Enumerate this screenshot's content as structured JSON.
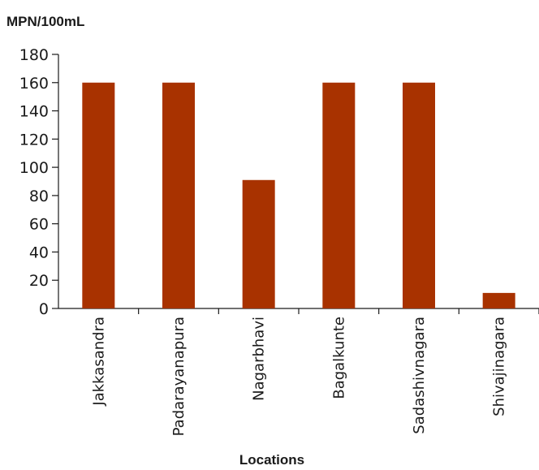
{
  "chart_data": {
    "type": "bar",
    "title": "",
    "ylabel": "MPN/100mL",
    "xlabel": "Locations",
    "categories": [
      "Jakkasandra",
      "Padarayanapura",
      "Nagarbhavi",
      "Bagalkunte",
      "Sadashivnagara",
      "Shivajinagara"
    ],
    "values": [
      160,
      160,
      91,
      160,
      160,
      11
    ],
    "ylim": [
      0,
      180
    ],
    "yticks": [
      0,
      20,
      40,
      60,
      80,
      100,
      120,
      140,
      160,
      180
    ],
    "grid": false,
    "legend": "none",
    "bar_color": "#A83200"
  }
}
